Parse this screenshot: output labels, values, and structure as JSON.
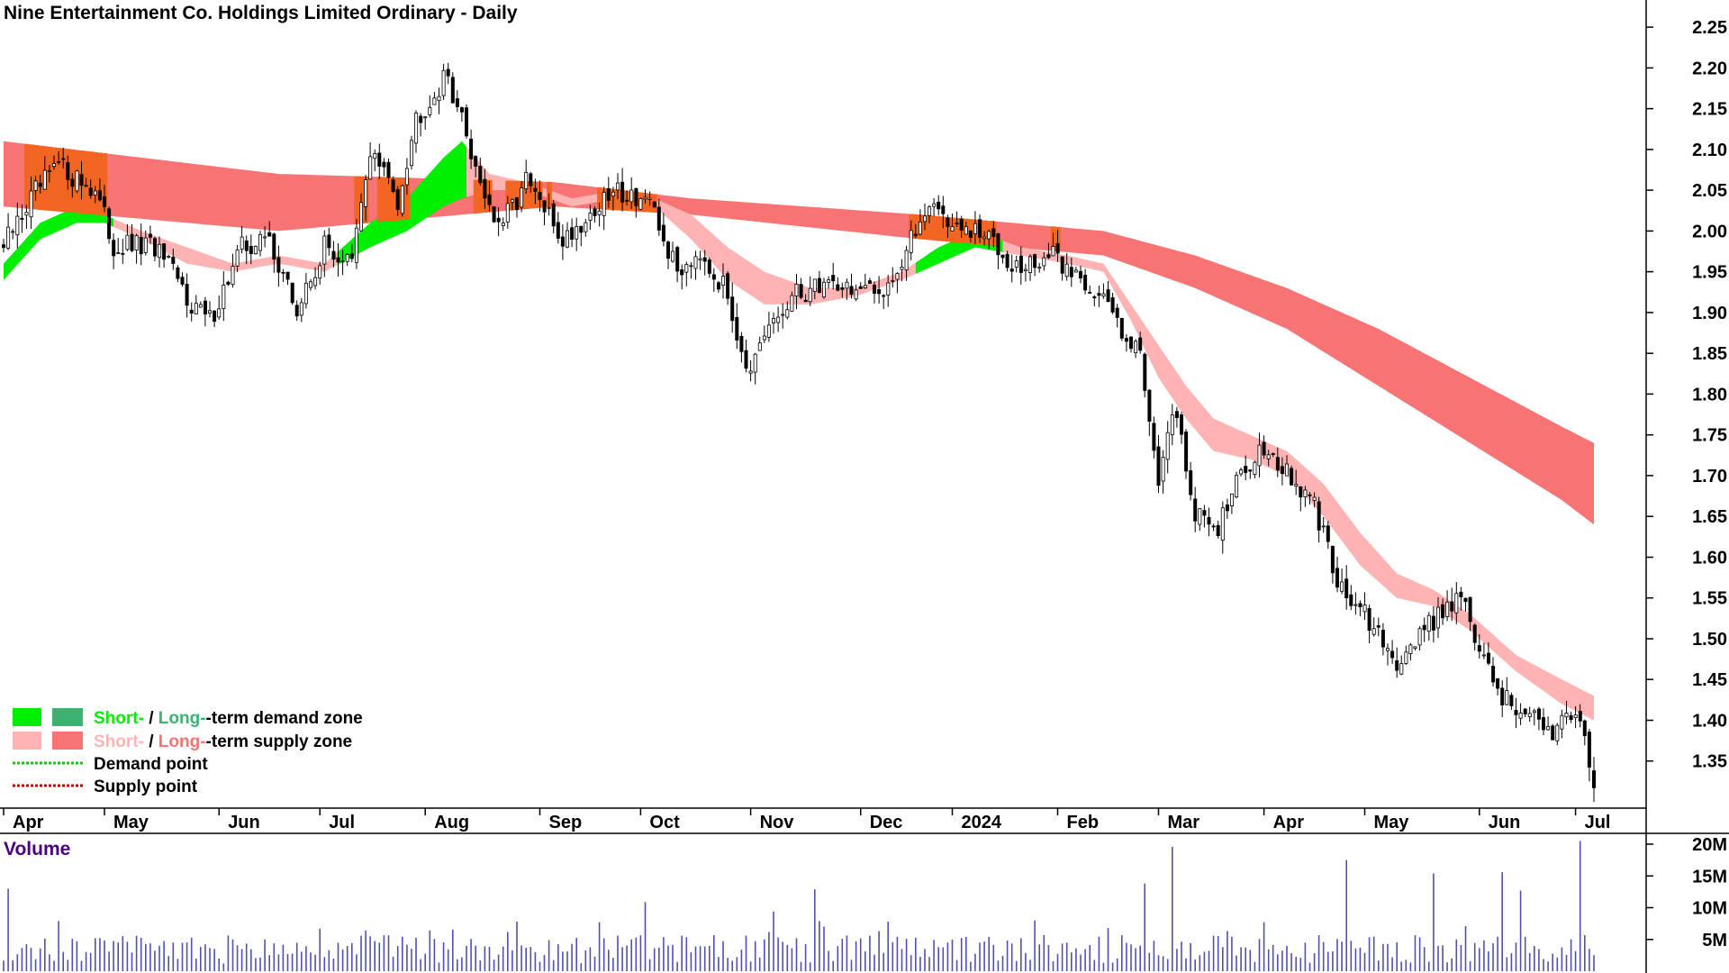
{
  "chart_data": {
    "type": "candlestick",
    "title": "Nine Entertainment Co. Holdings Limited Ordinary - Daily",
    "price_axis": {
      "ticks": [
        "2.25",
        "2.20",
        "2.15",
        "2.10",
        "2.05",
        "2.00",
        "1.95",
        "1.90",
        "1.85",
        "1.80",
        "1.75",
        "1.70",
        "1.65",
        "1.60",
        "1.55",
        "1.50",
        "1.45",
        "1.40",
        "1.35"
      ],
      "range": [
        1.3,
        2.27
      ],
      "side": "right"
    },
    "volume_axis": {
      "title": "Volume",
      "ticks": [
        "20M",
        "15M",
        "10M",
        "5M"
      ],
      "range": [
        0,
        21
      ]
    },
    "x_axis": {
      "months": [
        "Apr",
        "May",
        "Jun",
        "Jul",
        "Aug",
        "Sep",
        "Oct",
        "Nov",
        "Dec",
        "2024",
        "Feb",
        "Mar",
        "Apr",
        "May",
        "Jun",
        "Jul"
      ],
      "month_start_index": [
        0,
        22,
        47,
        69,
        92,
        117,
        139,
        163,
        187,
        207,
        230,
        252,
        275,
        297,
        322,
        343
      ],
      "trading_days": 348
    },
    "legend": {
      "placement": "bottom-left",
      "items": [
        {
          "kind": "demand-zone",
          "short": "Short-",
          "sep": " / ",
          "long": "Long-",
          "rest": "-term demand zone",
          "short_color": "#00ee00",
          "long_color": "#3cb371"
        },
        {
          "kind": "supply-zone",
          "short": "Short-",
          "sep": " / ",
          "long": "Long-",
          "rest": "-term supply zone",
          "short_color": "#ffb3b3",
          "long_color": "#f87474"
        },
        {
          "kind": "demand-point",
          "label": "Demand point",
          "color": "#00cc00"
        },
        {
          "kind": "supply-point",
          "label": "Supply point",
          "color": "#cc0000"
        }
      ]
    },
    "colors": {
      "candle_down": "#000000",
      "candle_up_fill": "#ffffff",
      "short_supply": "#ffb3b3",
      "long_supply": "#f87474",
      "short_demand": "#00ee00",
      "overlap": "#f26522",
      "volume_bar": "#5050b4"
    },
    "price_anchors": [
      {
        "i": 0,
        "c": 1.98
      },
      {
        "i": 6,
        "c": 2.04
      },
      {
        "i": 12,
        "c": 2.08
      },
      {
        "i": 20,
        "c": 2.05
      },
      {
        "i": 24,
        "c": 1.98
      },
      {
        "i": 33,
        "c": 1.98
      },
      {
        "i": 40,
        "c": 1.92
      },
      {
        "i": 45,
        "c": 1.89
      },
      {
        "i": 52,
        "c": 1.98
      },
      {
        "i": 58,
        "c": 1.99
      },
      {
        "i": 64,
        "c": 1.9
      },
      {
        "i": 70,
        "c": 1.98
      },
      {
        "i": 76,
        "c": 1.96
      },
      {
        "i": 80,
        "c": 2.1
      },
      {
        "i": 86,
        "c": 2.04
      },
      {
        "i": 90,
        "c": 2.14
      },
      {
        "i": 97,
        "c": 2.19
      },
      {
        "i": 103,
        "c": 2.08
      },
      {
        "i": 108,
        "c": 2.0
      },
      {
        "i": 114,
        "c": 2.06
      },
      {
        "i": 122,
        "c": 1.99
      },
      {
        "i": 128,
        "c": 2.02
      },
      {
        "i": 134,
        "c": 2.05
      },
      {
        "i": 140,
        "c": 2.04
      },
      {
        "i": 147,
        "c": 1.95
      },
      {
        "i": 152,
        "c": 1.98
      },
      {
        "i": 158,
        "c": 1.92
      },
      {
        "i": 163,
        "c": 1.82
      },
      {
        "i": 167,
        "c": 1.88
      },
      {
        "i": 173,
        "c": 1.92
      },
      {
        "i": 180,
        "c": 1.94
      },
      {
        "i": 190,
        "c": 1.92
      },
      {
        "i": 196,
        "c": 1.96
      },
      {
        "i": 202,
        "c": 2.04
      },
      {
        "i": 208,
        "c": 2.0
      },
      {
        "i": 216,
        "c": 1.99
      },
      {
        "i": 222,
        "c": 1.95
      },
      {
        "i": 228,
        "c": 1.97
      },
      {
        "i": 236,
        "c": 1.94
      },
      {
        "i": 242,
        "c": 1.9
      },
      {
        "i": 248,
        "c": 1.85
      },
      {
        "i": 252,
        "c": 1.7
      },
      {
        "i": 256,
        "c": 1.78
      },
      {
        "i": 260,
        "c": 1.65
      },
      {
        "i": 265,
        "c": 1.64
      },
      {
        "i": 270,
        "c": 1.7
      },
      {
        "i": 275,
        "c": 1.74
      },
      {
        "i": 280,
        "c": 1.7
      },
      {
        "i": 286,
        "c": 1.66
      },
      {
        "i": 292,
        "c": 1.56
      },
      {
        "i": 298,
        "c": 1.52
      },
      {
        "i": 303,
        "c": 1.47
      },
      {
        "i": 308,
        "c": 1.5
      },
      {
        "i": 313,
        "c": 1.53
      },
      {
        "i": 318,
        "c": 1.56
      },
      {
        "i": 322,
        "c": 1.48
      },
      {
        "i": 327,
        "c": 1.43
      },
      {
        "i": 332,
        "c": 1.41
      },
      {
        "i": 337,
        "c": 1.38
      },
      {
        "i": 341,
        "c": 1.42
      },
      {
        "i": 344,
        "c": 1.4
      },
      {
        "i": 347,
        "c": 1.33
      }
    ],
    "long_supply_band": [
      {
        "i": 0,
        "top": 2.11,
        "bot": 2.03
      },
      {
        "i": 60,
        "top": 2.07,
        "bot": 2.0
      },
      {
        "i": 120,
        "top": 2.06,
        "bot": 2.03
      },
      {
        "i": 150,
        "top": 2.04,
        "bot": 2.02
      },
      {
        "i": 200,
        "top": 2.02,
        "bot": 1.99
      },
      {
        "i": 240,
        "top": 2.0,
        "bot": 1.97
      },
      {
        "i": 260,
        "top": 1.97,
        "bot": 1.93
      },
      {
        "i": 280,
        "top": 1.93,
        "bot": 1.88
      },
      {
        "i": 300,
        "top": 1.88,
        "bot": 1.81
      },
      {
        "i": 320,
        "top": 1.82,
        "bot": 1.74
      },
      {
        "i": 340,
        "top": 1.76,
        "bot": 1.67
      },
      {
        "i": 347,
        "top": 1.74,
        "bot": 1.64
      }
    ],
    "short_band": [
      {
        "i": 0,
        "top": 1.96,
        "bot": 1.94
      },
      {
        "i": 8,
        "top": 2.01,
        "bot": 1.99
      },
      {
        "i": 16,
        "top": 2.03,
        "bot": 2.01
      },
      {
        "i": 22,
        "top": 2.02,
        "bot": 2.01
      },
      {
        "i": 30,
        "top": 2.0,
        "bot": 1.99
      },
      {
        "i": 40,
        "top": 1.98,
        "bot": 1.96
      },
      {
        "i": 50,
        "top": 1.96,
        "bot": 1.95
      },
      {
        "i": 60,
        "top": 1.97,
        "bot": 1.96
      },
      {
        "i": 70,
        "top": 1.96,
        "bot": 1.95
      },
      {
        "i": 80,
        "top": 2.01,
        "bot": 1.98
      },
      {
        "i": 88,
        "top": 2.04,
        "bot": 2.0
      },
      {
        "i": 96,
        "top": 2.09,
        "bot": 2.03
      },
      {
        "i": 100,
        "top": 2.11,
        "bot": 2.04
      },
      {
        "i": 106,
        "top": 2.07,
        "bot": 2.05
      },
      {
        "i": 114,
        "top": 2.06,
        "bot": 2.05
      },
      {
        "i": 124,
        "top": 2.04,
        "bot": 2.03
      },
      {
        "i": 134,
        "top": 2.05,
        "bot": 2.04
      },
      {
        "i": 142,
        "top": 2.04,
        "bot": 2.03
      },
      {
        "i": 150,
        "top": 2.02,
        "bot": 1.99
      },
      {
        "i": 158,
        "top": 1.98,
        "bot": 1.94
      },
      {
        "i": 166,
        "top": 1.95,
        "bot": 1.91
      },
      {
        "i": 176,
        "top": 1.93,
        "bot": 1.91
      },
      {
        "i": 186,
        "top": 1.93,
        "bot": 1.92
      },
      {
        "i": 196,
        "top": 1.95,
        "bot": 1.94
      },
      {
        "i": 204,
        "top": 1.98,
        "bot": 1.96
      },
      {
        "i": 212,
        "top": 2.0,
        "bot": 1.98
      },
      {
        "i": 222,
        "top": 1.98,
        "bot": 1.97
      },
      {
        "i": 232,
        "top": 1.97,
        "bot": 1.96
      },
      {
        "i": 240,
        "top": 1.96,
        "bot": 1.95
      },
      {
        "i": 246,
        "top": 1.91,
        "bot": 1.89
      },
      {
        "i": 252,
        "top": 1.86,
        "bot": 1.82
      },
      {
        "i": 258,
        "top": 1.81,
        "bot": 1.77
      },
      {
        "i": 264,
        "top": 1.77,
        "bot": 1.73
      },
      {
        "i": 272,
        "top": 1.75,
        "bot": 1.72
      },
      {
        "i": 280,
        "top": 1.73,
        "bot": 1.7
      },
      {
        "i": 288,
        "top": 1.69,
        "bot": 1.65
      },
      {
        "i": 296,
        "top": 1.63,
        "bot": 1.59
      },
      {
        "i": 304,
        "top": 1.58,
        "bot": 1.55
      },
      {
        "i": 312,
        "top": 1.56,
        "bot": 1.54
      },
      {
        "i": 320,
        "top": 1.53,
        "bot": 1.51
      },
      {
        "i": 330,
        "top": 1.48,
        "bot": 1.46
      },
      {
        "i": 340,
        "top": 1.45,
        "bot": 1.42
      },
      {
        "i": 347,
        "top": 1.43,
        "bot": 1.4
      }
    ],
    "demand_ranges": [
      [
        0,
        24
      ],
      [
        74,
        101
      ],
      [
        200,
        218
      ]
    ],
    "volume_spikes": [
      {
        "i": 249,
        "v": 13.8
      },
      {
        "i": 255,
        "v": 19.6
      },
      {
        "i": 293,
        "v": 17.5
      },
      {
        "i": 344,
        "v": 20.5
      },
      {
        "i": 177,
        "v": 12.9
      },
      {
        "i": 312,
        "v": 15.4
      },
      {
        "i": 327,
        "v": 15.6
      },
      {
        "i": 140,
        "v": 10.9
      },
      {
        "i": 1,
        "v": 13.0
      },
      {
        "i": 331,
        "v": 12.7
      },
      {
        "i": 168,
        "v": 9.4
      },
      {
        "i": 112,
        "v": 7.8
      }
    ]
  }
}
